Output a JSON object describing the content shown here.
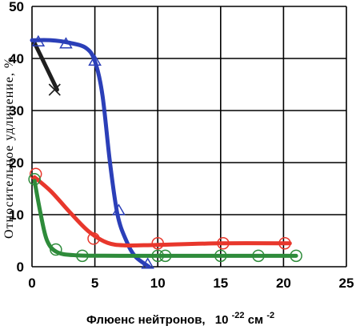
{
  "chart_data": {
    "type": "line",
    "xlabel_main": "Флюенс нейтронов,",
    "xlabel_power": "10",
    "xlabel_exp": "-22",
    "xlabel_unit": " см",
    "xlabel_unit_exp": "-2",
    "ylabel": "Относительное удлинение, %",
    "xlim": [
      0,
      25
    ],
    "ylim": [
      0,
      50
    ],
    "x_ticks": [
      "0",
      "5",
      "10",
      "15",
      "20",
      "25"
    ],
    "y_ticks": [
      "0",
      "10",
      "20",
      "30",
      "40",
      "50"
    ],
    "grid": true,
    "series": [
      {
        "color": "#1f1f1f",
        "marker": "x",
        "curve": [
          [
            0.2,
            43.0
          ],
          [
            0.8,
            40.0
          ],
          [
            1.5,
            36.5
          ],
          [
            2.0,
            34.0
          ]
        ],
        "points": [
          [
            1.8,
            34.0
          ]
        ]
      },
      {
        "color": "#2b3fb8",
        "marker": "triangle",
        "curve": [
          [
            0.0,
            43.5
          ],
          [
            1.5,
            43.5
          ],
          [
            3.0,
            43.0
          ],
          [
            4.3,
            42.0
          ],
          [
            5.0,
            39.5
          ],
          [
            5.6,
            33.0
          ],
          [
            6.2,
            20.0
          ],
          [
            6.8,
            10.0
          ],
          [
            7.5,
            5.0
          ],
          [
            8.2,
            2.0
          ],
          [
            9.3,
            0.0
          ]
        ],
        "points": [
          [
            0.5,
            43.2
          ],
          [
            2.7,
            42.8
          ],
          [
            5.0,
            39.5
          ],
          [
            6.9,
            10.8
          ],
          [
            9.2,
            0.5
          ]
        ]
      },
      {
        "color": "#e8372c",
        "marker": "circle",
        "curve": [
          [
            0.2,
            17.2
          ],
          [
            1.5,
            14.5
          ],
          [
            3.0,
            10.5
          ],
          [
            4.5,
            6.8
          ],
          [
            6.0,
            4.6
          ],
          [
            7.5,
            4.1
          ],
          [
            10.0,
            4.2
          ],
          [
            15.0,
            4.5
          ],
          [
            20.5,
            4.5
          ]
        ],
        "points": [
          [
            0.3,
            17.8
          ],
          [
            4.9,
            5.4
          ],
          [
            10.0,
            4.5
          ],
          [
            15.2,
            4.5
          ],
          [
            20.1,
            4.5
          ]
        ]
      },
      {
        "color": "#2e8b3a",
        "marker": "circle",
        "curve": [
          [
            0.2,
            16.5
          ],
          [
            0.7,
            10.0
          ],
          [
            1.2,
            5.0
          ],
          [
            2.0,
            2.8
          ],
          [
            3.5,
            2.2
          ],
          [
            7.0,
            2.1
          ],
          [
            12.0,
            2.1
          ],
          [
            21.0,
            2.1
          ]
        ],
        "points": [
          [
            0.2,
            16.8
          ],
          [
            1.9,
            3.3
          ],
          [
            4.0,
            2.1
          ],
          [
            10.0,
            2.1
          ],
          [
            10.6,
            2.1
          ],
          [
            15.0,
            2.1
          ],
          [
            18.0,
            2.1
          ],
          [
            21.0,
            2.1
          ]
        ]
      }
    ]
  }
}
